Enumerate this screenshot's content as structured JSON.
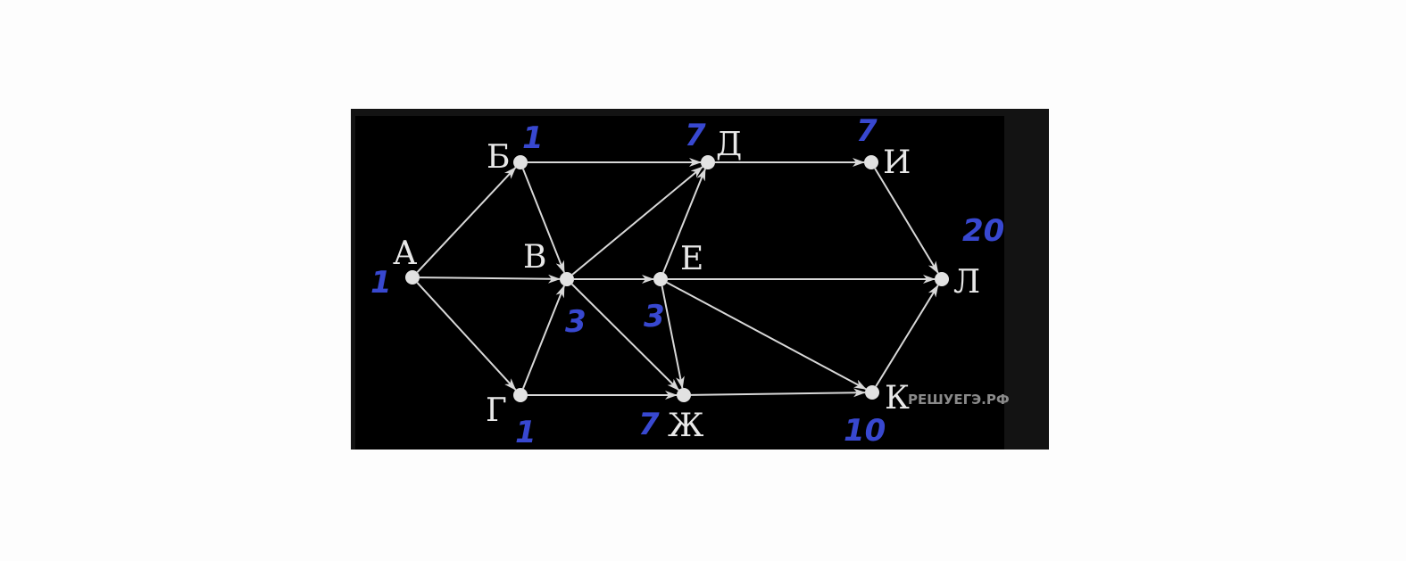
{
  "diagram": {
    "background": "#000000",
    "edge_color": "#d8d8d8",
    "node_color": "#e2e2e2",
    "annotation_color": "#3848d0",
    "nodes": [
      {
        "id": "A",
        "label": "А",
        "count": "1"
      },
      {
        "id": "B",
        "label": "Б",
        "count": "1"
      },
      {
        "id": "V",
        "label": "В",
        "count": "3"
      },
      {
        "id": "G",
        "label": "Г",
        "count": "1"
      },
      {
        "id": "D",
        "label": "Д",
        "count": "7"
      },
      {
        "id": "E",
        "label": "Е",
        "count": "3"
      },
      {
        "id": "Zh",
        "label": "Ж",
        "count": "7"
      },
      {
        "id": "I",
        "label": "И",
        "count": "7"
      },
      {
        "id": "K",
        "label": "К",
        "count": "10"
      },
      {
        "id": "L",
        "label": "Л",
        "count": "20"
      }
    ],
    "edges": [
      [
        "A",
        "B"
      ],
      [
        "A",
        "V"
      ],
      [
        "A",
        "G"
      ],
      [
        "B",
        "D"
      ],
      [
        "B",
        "V"
      ],
      [
        "G",
        "V"
      ],
      [
        "G",
        "Zh"
      ],
      [
        "V",
        "D"
      ],
      [
        "V",
        "E"
      ],
      [
        "V",
        "Zh"
      ],
      [
        "E",
        "D"
      ],
      [
        "E",
        "Zh"
      ],
      [
        "E",
        "K"
      ],
      [
        "E",
        "L"
      ],
      [
        "D",
        "I"
      ],
      [
        "I",
        "L"
      ],
      [
        "Zh",
        "K"
      ],
      [
        "K",
        "L"
      ]
    ],
    "watermark": "РЕШУЕГЭ.РФ"
  }
}
